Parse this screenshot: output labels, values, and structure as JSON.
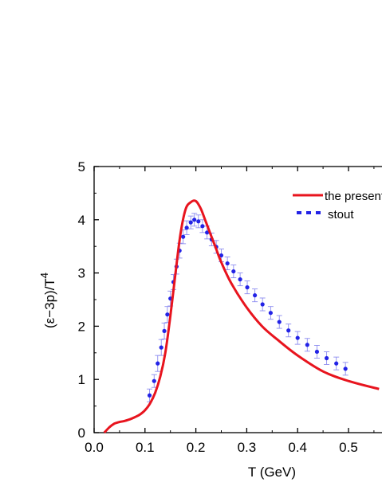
{
  "chart_data": {
    "type": "line",
    "xlabel": "T (GeV)",
    "ylabel_main": "(ε−3p)/T",
    "ylabel_sup": "4",
    "xlim": [
      0.0,
      0.56
    ],
    "ylim": [
      0,
      5
    ],
    "x_ticks": [
      "0.0",
      "0.1",
      "0.2",
      "0.3",
      "0.4",
      "0.5"
    ],
    "y_ticks": [
      "0",
      "1",
      "2",
      "3",
      "4",
      "5"
    ],
    "legend_position": "top-right",
    "series": [
      {
        "name": "the present",
        "kind": "line",
        "color": "#e8141e",
        "x": [
          0.02,
          0.03,
          0.04,
          0.05,
          0.06,
          0.07,
          0.08,
          0.09,
          0.1,
          0.11,
          0.12,
          0.13,
          0.14,
          0.15,
          0.16,
          0.17,
          0.18,
          0.19,
          0.2,
          0.21,
          0.22,
          0.23,
          0.24,
          0.25,
          0.27,
          0.3,
          0.33,
          0.36,
          0.4,
          0.45,
          0.5,
          0.56
        ],
        "y": [
          0.0,
          0.1,
          0.17,
          0.2,
          0.22,
          0.25,
          0.29,
          0.34,
          0.42,
          0.55,
          0.75,
          1.05,
          1.5,
          2.2,
          3.0,
          3.75,
          4.2,
          4.33,
          4.35,
          4.2,
          3.95,
          3.7,
          3.45,
          3.2,
          2.8,
          2.35,
          2.0,
          1.75,
          1.45,
          1.15,
          0.97,
          0.82
        ]
      },
      {
        "name": "stout",
        "kind": "points",
        "color": "#2323e6",
        "error_color": "#8c8cf0",
        "x": [
          0.109,
          0.118,
          0.125,
          0.132,
          0.138,
          0.144,
          0.15,
          0.156,
          0.162,
          0.168,
          0.175,
          0.182,
          0.19,
          0.197,
          0.205,
          0.213,
          0.222,
          0.231,
          0.24,
          0.25,
          0.262,
          0.274,
          0.287,
          0.301,
          0.316,
          0.331,
          0.347,
          0.364,
          0.382,
          0.4,
          0.419,
          0.438,
          0.457,
          0.476,
          0.494
        ],
        "y": [
          0.7,
          0.97,
          1.3,
          1.6,
          1.91,
          2.22,
          2.52,
          2.83,
          3.12,
          3.42,
          3.68,
          3.85,
          3.95,
          4.0,
          3.97,
          3.88,
          3.76,
          3.63,
          3.49,
          3.33,
          3.18,
          3.03,
          2.88,
          2.73,
          2.58,
          2.41,
          2.25,
          2.08,
          1.92,
          1.78,
          1.65,
          1.52,
          1.4,
          1.3,
          1.2
        ],
        "err": [
          0.12,
          0.12,
          0.15,
          0.15,
          0.15,
          0.15,
          0.14,
          0.14,
          0.14,
          0.14,
          0.13,
          0.13,
          0.12,
          0.12,
          0.12,
          0.12,
          0.12,
          0.12,
          0.12,
          0.12,
          0.12,
          0.12,
          0.12,
          0.12,
          0.12,
          0.12,
          0.12,
          0.12,
          0.12,
          0.12,
          0.12,
          0.12,
          0.12,
          0.12,
          0.12
        ]
      }
    ]
  }
}
